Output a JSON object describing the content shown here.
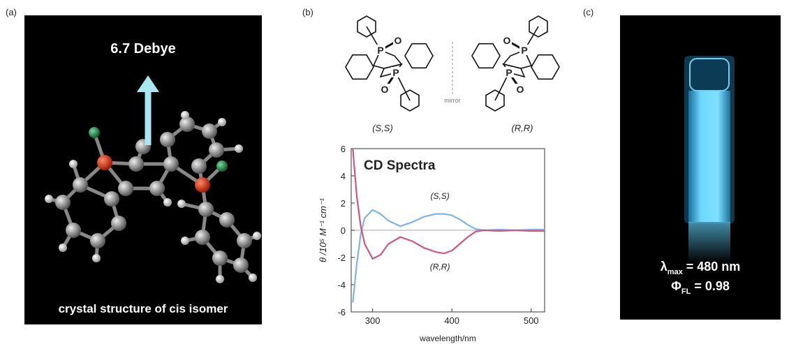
{
  "panels": {
    "a": {
      "label": "(a)",
      "annotation": "6.7 Debye",
      "caption": "crystal structure of cis isomer"
    },
    "b": {
      "label": "(b)",
      "molecules": [
        {
          "name": "(S,S)",
          "atoms": [
            "P",
            "O",
            "P",
            "O"
          ]
        },
        {
          "name": "(R,R)",
          "atoms": [
            "P",
            "O",
            "P",
            "O"
          ]
        }
      ],
      "mirror": "mirror"
    },
    "c": {
      "label": "(c)",
      "lambda": {
        "symbol": "λ",
        "sub": "max",
        "text": " = 480 nm"
      },
      "phi": {
        "symbol": "Φ",
        "sub": "FL",
        "text": " = 0.98"
      }
    }
  },
  "chart_data": {
    "type": "line",
    "title": "CD Spectra",
    "xlabel": "wavelength/nm",
    "ylabel": "θ /10⁵ M⁻¹ cm⁻¹",
    "x": [
      275,
      280,
      285,
      290,
      300,
      310,
      320,
      335,
      350,
      365,
      380,
      390,
      400,
      410,
      420,
      430,
      440,
      460,
      480,
      500,
      517
    ],
    "series": [
      {
        "name": "(S,S)",
        "color": "#7fb2ec",
        "values": [
          -5.3,
          -2.5,
          -0.3,
          0.9,
          1.5,
          1.2,
          0.7,
          0.3,
          0.6,
          1.0,
          1.2,
          1.2,
          1.1,
          0.8,
          0.4,
          0.1,
          0.0,
          0.05,
          0.0,
          0.05,
          0.05
        ]
      },
      {
        "name": "(R,R)",
        "color": "#d2557e",
        "values": [
          6,
          2.5,
          0.3,
          -1.0,
          -2.1,
          -1.8,
          -1.0,
          -0.5,
          -0.8,
          -1.3,
          -1.6,
          -1.7,
          -1.5,
          -1.0,
          -0.5,
          -0.1,
          0.0,
          -0.05,
          0.0,
          -0.05,
          -0.05
        ]
      }
    ],
    "xlim": [
      273,
      517
    ],
    "ylim": [
      -6,
      6
    ],
    "xticks": [
      300,
      400,
      500
    ],
    "yticks": [
      -6,
      -4,
      -2,
      0,
      2,
      4,
      6
    ],
    "zero_line": true
  }
}
